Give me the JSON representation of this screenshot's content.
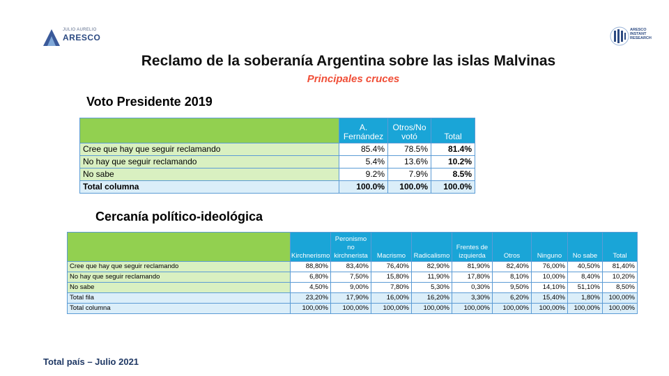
{
  "logo_left": {
    "small": "JULIO AURELIO",
    "big": "ARESCO"
  },
  "logo_right": {
    "line1": "ARESCO",
    "line2": "INSTANT",
    "line3": "RESEARCH"
  },
  "title": "Reclamo de la soberanía Argentina sobre las islas Malvinas",
  "subtitle": "Principales cruces",
  "section1": {
    "heading": "Voto Presidente 2019",
    "columns": [
      "A. Fernández",
      "Otros/No votó",
      "Total"
    ],
    "rows": [
      {
        "label": "Cree que hay que seguir reclamando",
        "values": [
          "85.4%",
          "78.5%",
          "81.4%"
        ]
      },
      {
        "label": "No hay que seguir reclamando",
        "values": [
          "5.4%",
          "13.6%",
          "10.2%"
        ]
      },
      {
        "label": "No sabe",
        "values": [
          "9.2%",
          "7.9%",
          "8.5%"
        ]
      },
      {
        "label": "Total columna",
        "values": [
          "100.0%",
          "100.0%",
          "100.0%"
        ]
      }
    ]
  },
  "section2": {
    "heading": "Cercanía político-ideológica",
    "columns": [
      "Kirchnerismo",
      "Peronismo no kirchnerista",
      "Macrismo",
      "Radicalismo",
      "Frentes de izquierda",
      "Otros",
      "Ninguno",
      "No sabe",
      "Total"
    ],
    "rows": [
      {
        "label": "Cree que hay que seguir reclamando",
        "values": [
          "88,80%",
          "83,40%",
          "76,40%",
          "82,90%",
          "81,90%",
          "82,40%",
          "76,00%",
          "40,50%",
          "81,40%"
        ]
      },
      {
        "label": "No hay que seguir reclamando",
        "values": [
          "6,80%",
          "7,50%",
          "15,80%",
          "11,90%",
          "17,80%",
          "8,10%",
          "10,00%",
          "8,40%",
          "10,20%"
        ]
      },
      {
        "label": "No sabe",
        "values": [
          "4,50%",
          "9,00%",
          "7,80%",
          "5,30%",
          "0,30%",
          "9,50%",
          "14,10%",
          "51,10%",
          "8,50%"
        ]
      },
      {
        "label": "Total fila",
        "values": [
          "23,20%",
          "17,90%",
          "16,00%",
          "16,20%",
          "3,30%",
          "6,20%",
          "15,40%",
          "1,80%",
          "100,00%"
        ]
      },
      {
        "label": "Total columna",
        "values": [
          "100,00%",
          "100,00%",
          "100,00%",
          "100,00%",
          "100,00%",
          "100,00%",
          "100,00%",
          "100,00%",
          "100,00%"
        ]
      }
    ]
  },
  "footer": "Total país – Julio 2021",
  "colors": {
    "header_blue": "#1aa5d7",
    "label_green": "#d9f0c1",
    "header_green": "#92d050",
    "subtitle_orange": "#f04e37",
    "footer_navy": "#1f3864"
  }
}
